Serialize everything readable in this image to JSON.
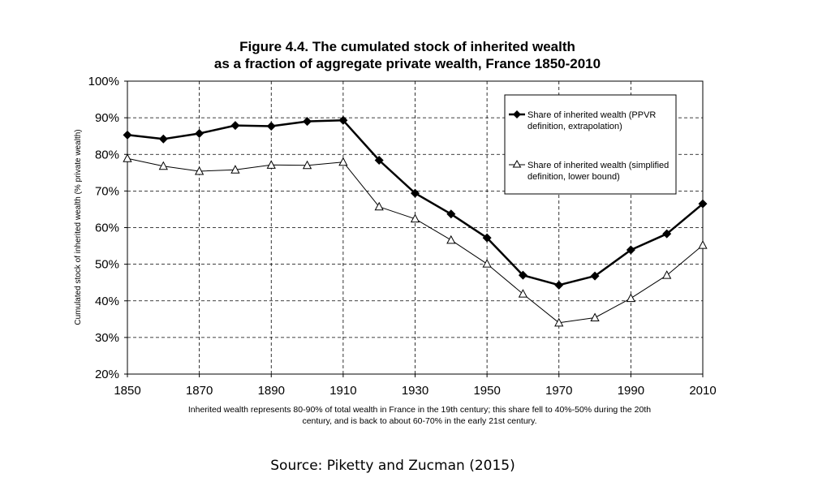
{
  "chart_data": {
    "type": "line",
    "title_lines": [
      "Figure 4.4. The cumulated stock of inherited wealth",
      "as a fraction of aggregate private wealth, France 1850-2010"
    ],
    "ylabel": "Cumulated stock of inherited wealth (% private wealth)",
    "xlabel": "",
    "xlim": [
      1850,
      2010
    ],
    "ylim": [
      0.2,
      1.0
    ],
    "x_ticks": [
      "1850",
      "1870",
      "1890",
      "1910",
      "1930",
      "1950",
      "1970",
      "1990",
      "2010"
    ],
    "y_ticks": [
      "20%",
      "30%",
      "40%",
      "50%",
      "60%",
      "70%",
      "80%",
      "90%",
      "100%"
    ],
    "grid": "dashed",
    "legend_position": "top-right",
    "x": [
      1850,
      1860,
      1870,
      1880,
      1890,
      1900,
      1910,
      1920,
      1930,
      1940,
      1950,
      1960,
      1970,
      1980,
      1990,
      2000,
      2010
    ],
    "series": [
      {
        "name_lines": [
          "Share of inherited wealth (PPVR",
          "definition, extrapolation)"
        ],
        "marker": "diamond-filled",
        "color": "#000000",
        "values": [
          0.853,
          0.842,
          0.857,
          0.879,
          0.877,
          0.89,
          0.893,
          0.784,
          0.694,
          0.637,
          0.572,
          0.47,
          0.443,
          0.468,
          0.539,
          0.583,
          0.665
        ]
      },
      {
        "name_lines": [
          "Share of inherited wealth (simplified",
          "definition, lower bound)"
        ],
        "marker": "triangle-open",
        "color": "#000000",
        "values": [
          0.789,
          0.768,
          0.754,
          0.758,
          0.771,
          0.77,
          0.779,
          0.657,
          0.624,
          0.566,
          0.501,
          0.419,
          0.34,
          0.354,
          0.407,
          0.47,
          0.552
        ]
      }
    ],
    "note_lines": [
      "Inherited wealth represents 80-90% of total wealth in France in the 19th century; this share fell to 40%-50% during the 20th",
      "century, and is back to about 60-70% in the early 21st century."
    ]
  },
  "source": "Source:  Piketty and Zucman (2015)"
}
